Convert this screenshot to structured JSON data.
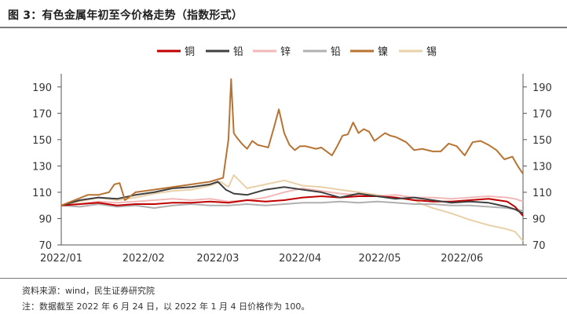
{
  "title": "图 3：有色金属年初至今价格走势（指数形式）",
  "footnotes": {
    "source": "资料来源：wind，民生证券研究院",
    "note": "注：数据截至 2022 年 6 月 24 日，以 2022 年 1 月 4 日价格作为 100。"
  },
  "chart_data": {
    "type": "line",
    "title": "图 3：有色金属年初至今价格走势（指数形式）",
    "xlabel": "",
    "ylabel": "",
    "x_ticks": [
      "2022/01",
      "2022/02",
      "2022/03",
      "2022/04",
      "2022/05",
      "2022/06"
    ],
    "y_ticks": [
      70,
      90,
      110,
      130,
      150,
      170,
      190
    ],
    "ylim": [
      70,
      200
    ],
    "xlim": [
      0,
      174
    ],
    "legend_position": "top",
    "grid": false,
    "series": [
      {
        "name": "铜",
        "color": "#c00000",
        "x": [
          0,
          7,
          14,
          21,
          28,
          35,
          42,
          49,
          56,
          63,
          70,
          77,
          84,
          91,
          98,
          105,
          112,
          119,
          126,
          133,
          140,
          147,
          154,
          161,
          168,
          171,
          174
        ],
        "values": [
          100,
          101,
          102,
          100,
          101,
          101,
          102,
          102,
          103,
          102,
          104,
          103,
          104,
          106,
          107,
          106,
          107,
          107,
          106,
          104,
          103,
          103,
          104,
          105,
          103,
          99,
          92
        ]
      },
      {
        "name": "铅",
        "color": "#404040",
        "x": [
          0,
          7,
          14,
          21,
          28,
          35,
          42,
          49,
          56,
          59,
          62,
          65,
          70,
          77,
          84,
          91,
          98,
          105,
          112,
          119,
          126,
          133,
          140,
          147,
          154,
          161,
          168,
          171,
          174
        ],
        "values": [
          100,
          104,
          106,
          105,
          108,
          110,
          113,
          114,
          116,
          118,
          112,
          109,
          108,
          112,
          114,
          112,
          110,
          106,
          109,
          107,
          105,
          106,
          104,
          102,
          103,
          102,
          99,
          97,
          94
        ]
      },
      {
        "name": "锌",
        "color": "#f2b8b8",
        "x": [
          0,
          7,
          14,
          21,
          28,
          35,
          42,
          49,
          56,
          63,
          70,
          77,
          84,
          91,
          98,
          105,
          112,
          119,
          126,
          133,
          140,
          147,
          154,
          161,
          168,
          171,
          174
        ],
        "values": [
          100,
          101,
          103,
          102,
          103,
          104,
          105,
          104,
          105,
          103,
          104,
          106,
          110,
          113,
          111,
          109,
          108,
          107,
          108,
          106,
          106,
          105,
          106,
          107,
          106,
          105,
          103
        ]
      },
      {
        "name": "铅",
        "color": "#b0b0b0",
        "x": [
          0,
          7,
          14,
          21,
          28,
          35,
          42,
          49,
          56,
          63,
          70,
          77,
          84,
          91,
          98,
          105,
          112,
          119,
          126,
          133,
          140,
          147,
          154,
          161,
          168,
          171,
          174
        ],
        "values": [
          100,
          99,
          101,
          99,
          100,
          98,
          100,
          101,
          100,
          100,
          101,
          100,
          101,
          102,
          102,
          103,
          102,
          103,
          102,
          101,
          101,
          100,
          100,
          99,
          98,
          97,
          96
        ]
      },
      {
        "name": "镍",
        "color": "#b87333",
        "x": [
          0,
          5,
          10,
          14,
          18,
          20,
          22,
          24,
          28,
          35,
          42,
          49,
          56,
          61,
          63,
          64,
          65,
          66,
          68,
          70,
          72,
          74,
          76,
          78,
          80,
          82,
          84,
          86,
          88,
          90,
          92,
          94,
          96,
          98,
          100,
          102,
          104,
          106,
          108,
          110,
          112,
          114,
          116,
          118,
          120,
          122,
          124,
          126,
          128,
          130,
          133,
          136,
          140,
          143,
          146,
          149,
          152,
          155,
          158,
          161,
          164,
          167,
          170,
          172,
          174
        ],
        "values": [
          100,
          104,
          108,
          108,
          110,
          116,
          117,
          104,
          110,
          112,
          114,
          116,
          118,
          121,
          150,
          196,
          155,
          152,
          147,
          143,
          149,
          146,
          145,
          144,
          158,
          173,
          155,
          146,
          142,
          145,
          145,
          144,
          143,
          144,
          141,
          138,
          145,
          153,
          154,
          163,
          155,
          158,
          156,
          149,
          152,
          155,
          153,
          152,
          150,
          148,
          142,
          143,
          141,
          141,
          147,
          145,
          138,
          148,
          149,
          146,
          142,
          135,
          137,
          130,
          124
        ]
      },
      {
        "name": "锡",
        "color": "#e8d0a8",
        "x": [
          0,
          7,
          14,
          21,
          28,
          35,
          42,
          49,
          56,
          60,
          63,
          65,
          70,
          77,
          84,
          91,
          98,
          105,
          112,
          119,
          126,
          133,
          136,
          140,
          147,
          154,
          161,
          168,
          171,
          174
        ],
        "values": [
          100,
          103,
          106,
          104,
          106,
          109,
          111,
          112,
          115,
          118,
          114,
          123,
          113,
          116,
          119,
          115,
          114,
          112,
          110,
          108,
          106,
          104,
          101,
          98,
          94,
          89,
          85,
          82,
          80,
          73
        ]
      }
    ]
  }
}
